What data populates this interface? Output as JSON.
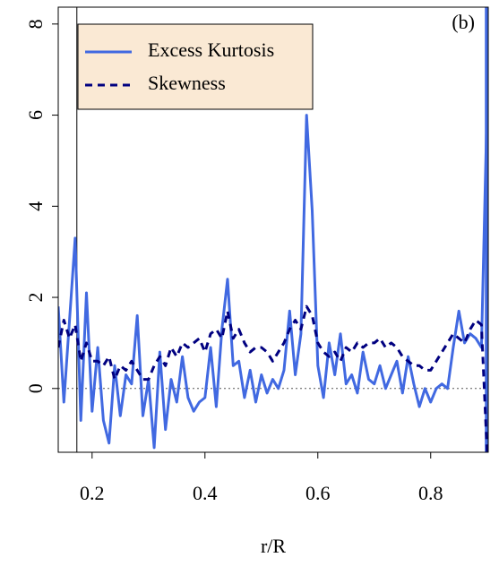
{
  "chart_data": {
    "type": "line",
    "annotation": "(b)",
    "xlabel": "r/R",
    "x": [
      0.14,
      0.15,
      0.16,
      0.17,
      0.18,
      0.19,
      0.2,
      0.21,
      0.22,
      0.23,
      0.24,
      0.25,
      0.26,
      0.27,
      0.28,
      0.29,
      0.3,
      0.31,
      0.32,
      0.33,
      0.34,
      0.35,
      0.36,
      0.37,
      0.38,
      0.39,
      0.4,
      0.41,
      0.42,
      0.43,
      0.44,
      0.45,
      0.46,
      0.47,
      0.48,
      0.49,
      0.5,
      0.51,
      0.52,
      0.53,
      0.54,
      0.55,
      0.56,
      0.57,
      0.58,
      0.59,
      0.6,
      0.61,
      0.62,
      0.63,
      0.64,
      0.65,
      0.66,
      0.67,
      0.68,
      0.69,
      0.7,
      0.71,
      0.72,
      0.73,
      0.74,
      0.75,
      0.76,
      0.77,
      0.78,
      0.79,
      0.8,
      0.81,
      0.82,
      0.83,
      0.84,
      0.85,
      0.86,
      0.87,
      0.88,
      0.89,
      0.9
    ],
    "series": [
      {
        "name": "Excess Kurtosis",
        "color": "#4169e1",
        "style": "solid",
        "values": [
          1.8,
          -0.3,
          1.5,
          3.3,
          -0.7,
          2.1,
          -0.5,
          0.9,
          -0.7,
          -1.2,
          0.5,
          -0.6,
          0.3,
          0.1,
          1.6,
          -0.6,
          0.2,
          -1.3,
          0.8,
          -0.9,
          0.2,
          -0.3,
          0.7,
          -0.2,
          -0.5,
          -0.3,
          -0.2,
          0.9,
          -0.4,
          1.3,
          2.4,
          0.5,
          0.6,
          -0.2,
          0.4,
          -0.3,
          0.3,
          -0.1,
          0.2,
          0.0,
          0.4,
          1.7,
          0.3,
          1.2,
          6.0,
          3.9,
          0.5,
          -0.2,
          1.0,
          0.3,
          1.2,
          0.1,
          0.3,
          -0.1,
          0.8,
          0.2,
          0.1,
          0.5,
          0.0,
          0.3,
          0.6,
          -0.1,
          0.7,
          0.1,
          -0.4,
          0.0,
          -0.3,
          0.0,
          0.1,
          0.0,
          0.9,
          1.7,
          1.0,
          1.2,
          1.1,
          0.9,
          6.2
        ]
      },
      {
        "name": "Skewness",
        "color": "#000080",
        "style": "dashed",
        "values": [
          0.9,
          1.5,
          1.1,
          1.4,
          0.6,
          1.0,
          0.6,
          0.6,
          0.5,
          0.7,
          0.2,
          0.5,
          0.4,
          0.6,
          0.4,
          0.2,
          0.2,
          0.5,
          0.7,
          0.5,
          0.9,
          0.7,
          1.0,
          0.9,
          1.0,
          1.1,
          0.8,
          1.2,
          1.3,
          1.1,
          1.7,
          1.1,
          1.3,
          1.0,
          0.8,
          0.9,
          0.9,
          0.8,
          0.6,
          0.8,
          1.0,
          1.3,
          1.5,
          1.3,
          1.8,
          1.6,
          1.0,
          0.8,
          0.7,
          0.8,
          0.6,
          0.9,
          0.8,
          1.0,
          0.9,
          1.0,
          1.0,
          1.1,
          0.9,
          1.0,
          0.9,
          0.7,
          0.6,
          0.5,
          0.5,
          0.4,
          0.4,
          0.6,
          0.8,
          1.0,
          1.2,
          1.1,
          1.0,
          1.3,
          1.5,
          1.4,
          -1.4
        ]
      }
    ],
    "xlim": [
      0.14,
      0.902
    ],
    "ylim": [
      -1.4,
      8.37
    ],
    "xticks": [
      0.2,
      0.4,
      0.6,
      0.8
    ],
    "yticks": [
      0,
      2,
      4,
      6,
      8
    ],
    "vline_x": 0.173,
    "edge_line_x": 0.9,
    "hline_y": 0,
    "legend_position": "upper left",
    "legend_fill": "#fae9d4"
  }
}
